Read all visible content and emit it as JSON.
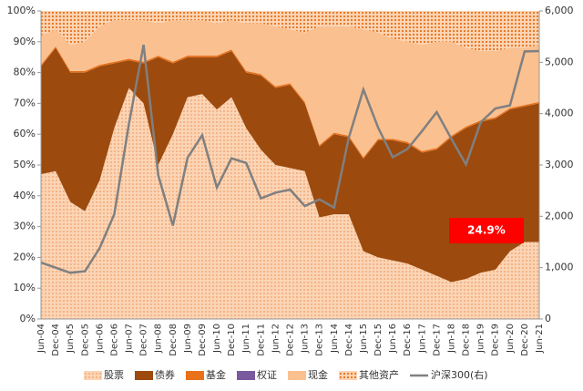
{
  "chart_data": {
    "type": "stacked_area_line",
    "categories": [
      "Jun-04",
      "Dec-04",
      "Jun-05",
      "Dec-05",
      "Jun-06",
      "Dec-06",
      "Jun-07",
      "Dec-07",
      "Jun-08",
      "Dec-08",
      "Jun-09",
      "Dec-09",
      "Jun-10",
      "Dec-10",
      "Jun-11",
      "Dec-11",
      "Jun-12",
      "Dec-12",
      "Jun-13",
      "Dec-13",
      "Jun-14",
      "Dec-14",
      "Jun-15",
      "Dec-15",
      "Jun-16",
      "Dec-16",
      "Jun-17",
      "Dec-17",
      "Jun-18",
      "Dec-18",
      "Jun-19",
      "Dec-19",
      "Jun-20",
      "Dec-20",
      "Jun-21"
    ],
    "series": [
      {
        "name": "股票",
        "color": "#fbd5b5",
        "fill_style": "dots",
        "values": [
          47,
          48,
          38,
          35,
          45,
          62,
          75,
          70,
          50,
          60,
          72,
          73,
          68,
          72,
          62,
          55,
          50,
          49,
          48,
          33,
          34,
          34,
          22,
          20,
          19,
          18,
          16,
          14,
          12,
          13,
          15,
          16,
          22,
          25,
          25
        ]
      },
      {
        "name": "债券",
        "color": "#9c4a0e",
        "values": [
          35,
          40,
          42,
          45,
          37,
          21,
          9,
          13,
          35,
          23,
          13,
          12,
          17,
          15,
          18,
          24,
          25,
          27,
          22,
          23,
          26,
          25,
          30,
          38,
          39,
          39,
          38,
          41,
          47,
          49,
          49,
          49,
          46,
          44,
          45
        ]
      },
      {
        "name": "基金",
        "color": "#e8711a",
        "values": [
          0.5,
          0.5,
          0.5,
          0.5,
          0.5,
          0.5,
          0.5,
          0.5,
          0.5,
          0.5,
          0.5,
          0.5,
          0.5,
          0.5,
          0.5,
          0.5,
          0.5,
          0.5,
          0.5,
          0.5,
          0.5,
          0.5,
          0.5,
          0.5,
          0.5,
          0.5,
          0.5,
          0.5,
          0.5,
          0.5,
          0.5,
          0.5,
          0.5,
          0.5,
          0.5
        ]
      },
      {
        "name": "权证",
        "color": "#7a5a9e",
        "values": [
          0,
          0,
          0,
          0,
          0,
          0,
          0,
          0,
          0,
          0,
          0,
          0,
          0,
          0,
          0,
          0,
          0,
          0,
          0,
          0,
          0,
          0,
          0,
          0,
          0,
          0,
          0,
          0,
          0,
          0,
          0,
          0,
          0,
          0,
          0
        ]
      },
      {
        "name": "现金",
        "color": "#fac090",
        "values": [
          9.5,
          5.5,
          8.5,
          9.5,
          12.5,
          13.5,
          12.5,
          13.5,
          10.5,
          13.5,
          11.5,
          11.5,
          10.5,
          9.5,
          15.5,
          16.5,
          19.5,
          17.5,
          22.5,
          38.5,
          34.5,
          35.5,
          41.5,
          34.5,
          32.5,
          32.5,
          34.5,
          34.5,
          30.5,
          25.5,
          22.5,
          21.5,
          19.5,
          18.5,
          18.5
        ]
      },
      {
        "name": "其他资产",
        "color": "#e8711a",
        "fill_style": "dots",
        "values": [
          8,
          6,
          11,
          10,
          5,
          3,
          3,
          3,
          4,
          3,
          3,
          3,
          4,
          3,
          4,
          4,
          5,
          6,
          7,
          5,
          5,
          5,
          6,
          7,
          9,
          10,
          11,
          10,
          10,
          12,
          13,
          13,
          12,
          12,
          11
        ]
      },
      {
        "name": "沪深300(右)",
        "color": "#808080",
        "axis": "y2",
        "values": [
          1100,
          1000,
          900,
          930,
          1380,
          2040,
          3800,
          5340,
          2800,
          1820,
          3140,
          3580,
          2560,
          3130,
          3040,
          2350,
          2460,
          2520,
          2200,
          2330,
          2170,
          3530,
          4470,
          3730,
          3150,
          3310,
          3660,
          4030,
          3510,
          3010,
          3830,
          4100,
          4160,
          5210,
          5220
        ]
      }
    ],
    "ylim": [
      0,
      100
    ],
    "yticks": [
      {
        "value": 0,
        "label": "0%"
      },
      {
        "value": 10,
        "label": "10%"
      },
      {
        "value": 20,
        "label": "20%"
      },
      {
        "value": 30,
        "label": "30%"
      },
      {
        "value": 40,
        "label": "40%"
      },
      {
        "value": 50,
        "label": "50%"
      },
      {
        "value": 60,
        "label": "60%"
      },
      {
        "value": 70,
        "label": "70%"
      },
      {
        "value": 80,
        "label": "80%"
      },
      {
        "value": 90,
        "label": "90%"
      },
      {
        "value": 100,
        "label": "100%"
      }
    ],
    "y2lim": [
      0,
      6000
    ],
    "y2ticks": [
      0,
      {
        "value": 1000,
        "label": "1,000"
      },
      {
        "value": 2000,
        "label": "2,000"
      },
      {
        "value": 3000,
        "label": "3,000"
      },
      {
        "value": 4000,
        "label": "4,000"
      },
      {
        "value": 5000,
        "label": "5,000"
      },
      {
        "value": 6000,
        "label": "6,000"
      }
    ],
    "annotation": "24.9%"
  }
}
